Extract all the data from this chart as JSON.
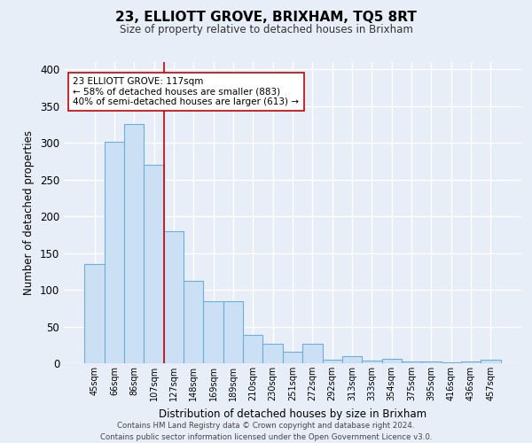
{
  "title": "23, ELLIOTT GROVE, BRIXHAM, TQ5 8RT",
  "subtitle": "Size of property relative to detached houses in Brixham",
  "xlabel": "Distribution of detached houses by size in Brixham",
  "ylabel": "Number of detached properties",
  "categories": [
    "45sqm",
    "66sqm",
    "86sqm",
    "107sqm",
    "127sqm",
    "148sqm",
    "169sqm",
    "189sqm",
    "210sqm",
    "230sqm",
    "251sqm",
    "272sqm",
    "292sqm",
    "313sqm",
    "333sqm",
    "354sqm",
    "375sqm",
    "395sqm",
    "416sqm",
    "436sqm",
    "457sqm"
  ],
  "values": [
    135,
    302,
    325,
    270,
    180,
    112,
    84,
    84,
    38,
    27,
    16,
    27,
    5,
    10,
    4,
    6,
    2,
    2,
    1,
    2,
    5
  ],
  "bar_color": "#cce0f5",
  "bar_edge_color": "#6baed6",
  "background_color": "#e8eef8",
  "grid_color": "#ffffff",
  "vline_x": 3.5,
  "vline_color": "#cc0000",
  "annotation_line1": "23 ELLIOTT GROVE: 117sqm",
  "annotation_line2": "← 58% of detached houses are smaller (883)",
  "annotation_line3": "40% of semi-detached houses are larger (613) →",
  "annotation_box_color": "#ffffff",
  "annotation_box_edge": "#cc0000",
  "footer": "Contains HM Land Registry data © Crown copyright and database right 2024.\nContains public sector information licensed under the Open Government Licence v3.0.",
  "ylim": [
    0,
    410
  ],
  "yticks": [
    0,
    50,
    100,
    150,
    200,
    250,
    300,
    350,
    400
  ]
}
